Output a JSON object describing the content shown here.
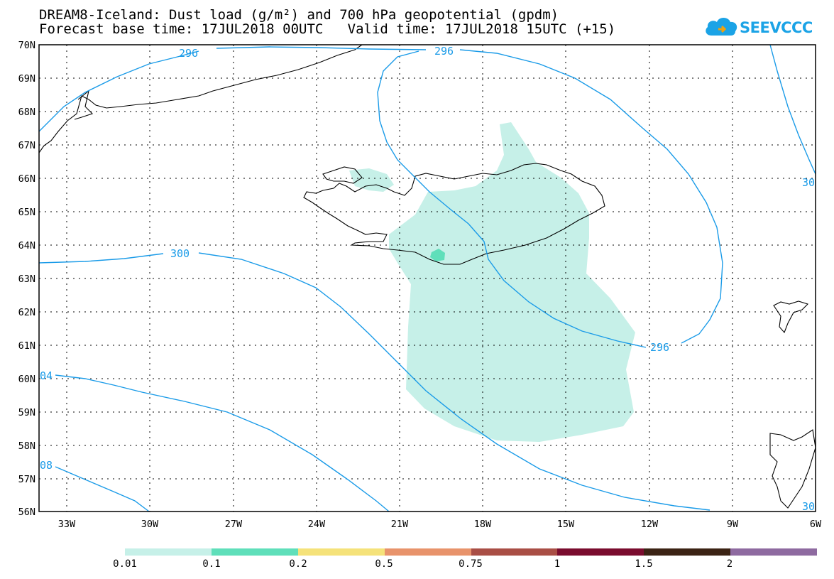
{
  "header": {
    "title_line1": "DREAM8-Iceland: Dust load (g/m²) and 700 hPa geopotential (gpdm)",
    "title_line2": "Forecast base time: 17JUL2018 00UTC   Valid time: 17JUL2018 15UTC (+15)"
  },
  "logo": {
    "text": "SEEVCCC",
    "color": "#1ba3e6"
  },
  "map": {
    "lat_labels": [
      "70N",
      "69N",
      "68N",
      "67N",
      "66N",
      "65N",
      "64N",
      "63N",
      "62N",
      "61N",
      "60N",
      "59N",
      "58N",
      "57N",
      "56N"
    ],
    "lon_labels": [
      "33W",
      "30W",
      "27W",
      "24W",
      "21W",
      "18W",
      "15W",
      "12W",
      "9W",
      "6W"
    ],
    "contour_labels": [
      "296",
      "296",
      "300",
      "296",
      "04",
      "08",
      "30",
      "30"
    ],
    "colors": {
      "dust_low": "#c6f0e8",
      "dust_mid": "#5fdfba",
      "contour": "#1a9be8",
      "coast": "#000000"
    }
  },
  "colorbar": {
    "labels": [
      "0.01",
      "0.1",
      "0.2",
      "0.5",
      "0.75",
      "1",
      "1.5",
      "2"
    ],
    "colors": [
      "#c6f0e8",
      "#5fdfba",
      "#f5e27a",
      "#e8936b",
      "#a94e45",
      "#7a0c2e",
      "#3b2314",
      "#8e6aa0"
    ]
  }
}
